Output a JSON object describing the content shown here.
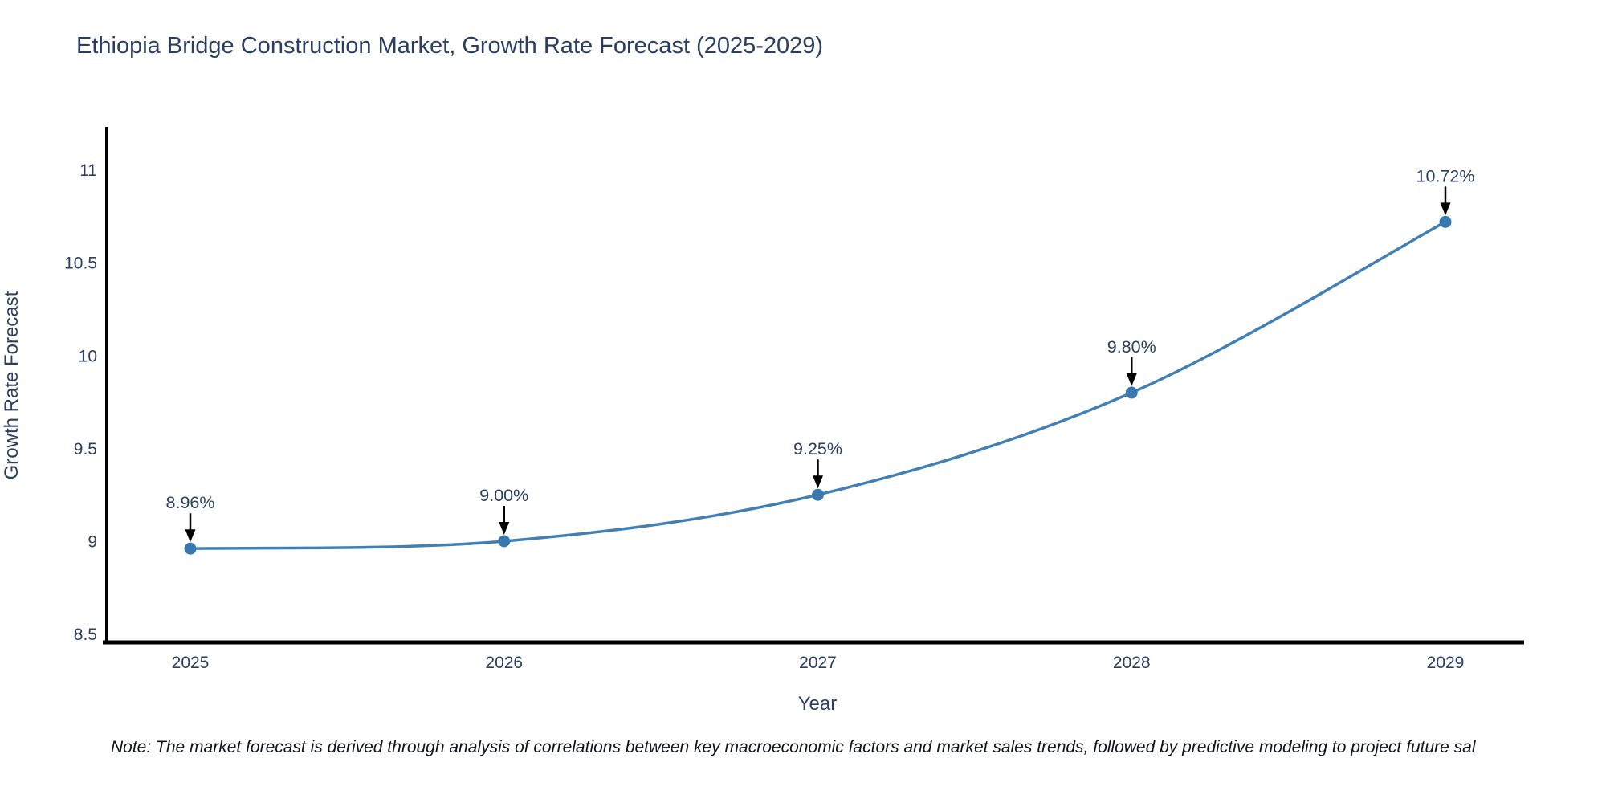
{
  "chart_data": {
    "type": "line",
    "title": "Ethiopia Bridge Construction Market, Growth Rate Forecast (2025-2029)",
    "xlabel": "Year",
    "ylabel": "Growth Rate Forecast",
    "x": [
      "2025",
      "2026",
      "2027",
      "2028",
      "2029"
    ],
    "series": [
      {
        "name": "Growth Rate Forecast",
        "values": [
          8.96,
          9.0,
          9.25,
          9.8,
          10.72
        ]
      }
    ],
    "point_labels": [
      "8.96%",
      "9.00%",
      "9.25%",
      "9.80%",
      "10.72%"
    ],
    "yticks": [
      8.5,
      9,
      9.5,
      10,
      10.5,
      11
    ],
    "ylim": [
      8.45,
      11.23
    ],
    "grid": false,
    "legend_position": "none",
    "line_shape": "spline",
    "colors": {
      "line": "#4280b4",
      "marker": "#3a78b0",
      "axis": "#000000",
      "text": "#2a3f5f",
      "annotation_text": "#2a3f5f",
      "annotation_arrow": "#000000",
      "background": "#ffffff"
    }
  },
  "note": {
    "text": "Note: The market forecast is derived through analysis of correlations between key macroeconomic factors and market sales trends, followed by predictive modeling to project future sal"
  }
}
